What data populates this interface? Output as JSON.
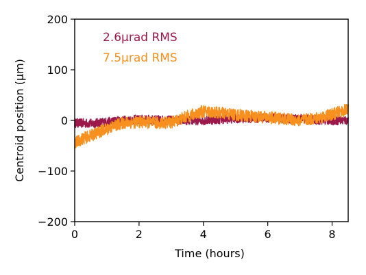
{
  "chart_data": {
    "type": "line",
    "title": "",
    "xlabel": "Time (hours)",
    "ylabel": "Centroid position (μm)",
    "xlim": [
      0,
      8.5
    ],
    "ylim": [
      -200,
      200
    ],
    "xticks": [
      0,
      2,
      4,
      6,
      8
    ],
    "yticks": [
      200,
      100,
      0,
      -100,
      -200
    ],
    "xtick_labels": [
      "0",
      "2",
      "4",
      "6",
      "8"
    ],
    "ytick_labels": [
      "200",
      "100",
      "0",
      "−100",
      "−200"
    ],
    "grid": false,
    "legend_position": "top-left",
    "series": [
      {
        "name": "2.6μrad RMS",
        "color": "#9b1a4b",
        "noise_amplitude": 9,
        "x": [
          0,
          0.5,
          1.0,
          1.5,
          2.0,
          2.5,
          3.0,
          3.5,
          4.0,
          4.5,
          5.0,
          5.5,
          6.0,
          6.5,
          7.0,
          7.5,
          8.0,
          8.5
        ],
        "y": [
          -5,
          -6,
          -3,
          0,
          2,
          1,
          0,
          0,
          0,
          2,
          4,
          4,
          5,
          4,
          3,
          1,
          0,
          0
        ]
      },
      {
        "name": "7.5μrad RMS",
        "color": "#f7901e",
        "noise_amplitude": 12,
        "x": [
          0,
          0.25,
          0.5,
          0.75,
          1.0,
          1.25,
          1.5,
          2.0,
          2.5,
          3.0,
          3.5,
          4.0,
          4.5,
          5.0,
          5.5,
          6.0,
          6.5,
          7.0,
          7.5,
          8.0,
          8.5
        ],
        "y": [
          -45,
          -36,
          -30,
          -23,
          -17,
          -10,
          -5,
          -3,
          -5,
          -4,
          8,
          18,
          15,
          11,
          8,
          6,
          3,
          0,
          4,
          12,
          22
        ]
      }
    ]
  }
}
